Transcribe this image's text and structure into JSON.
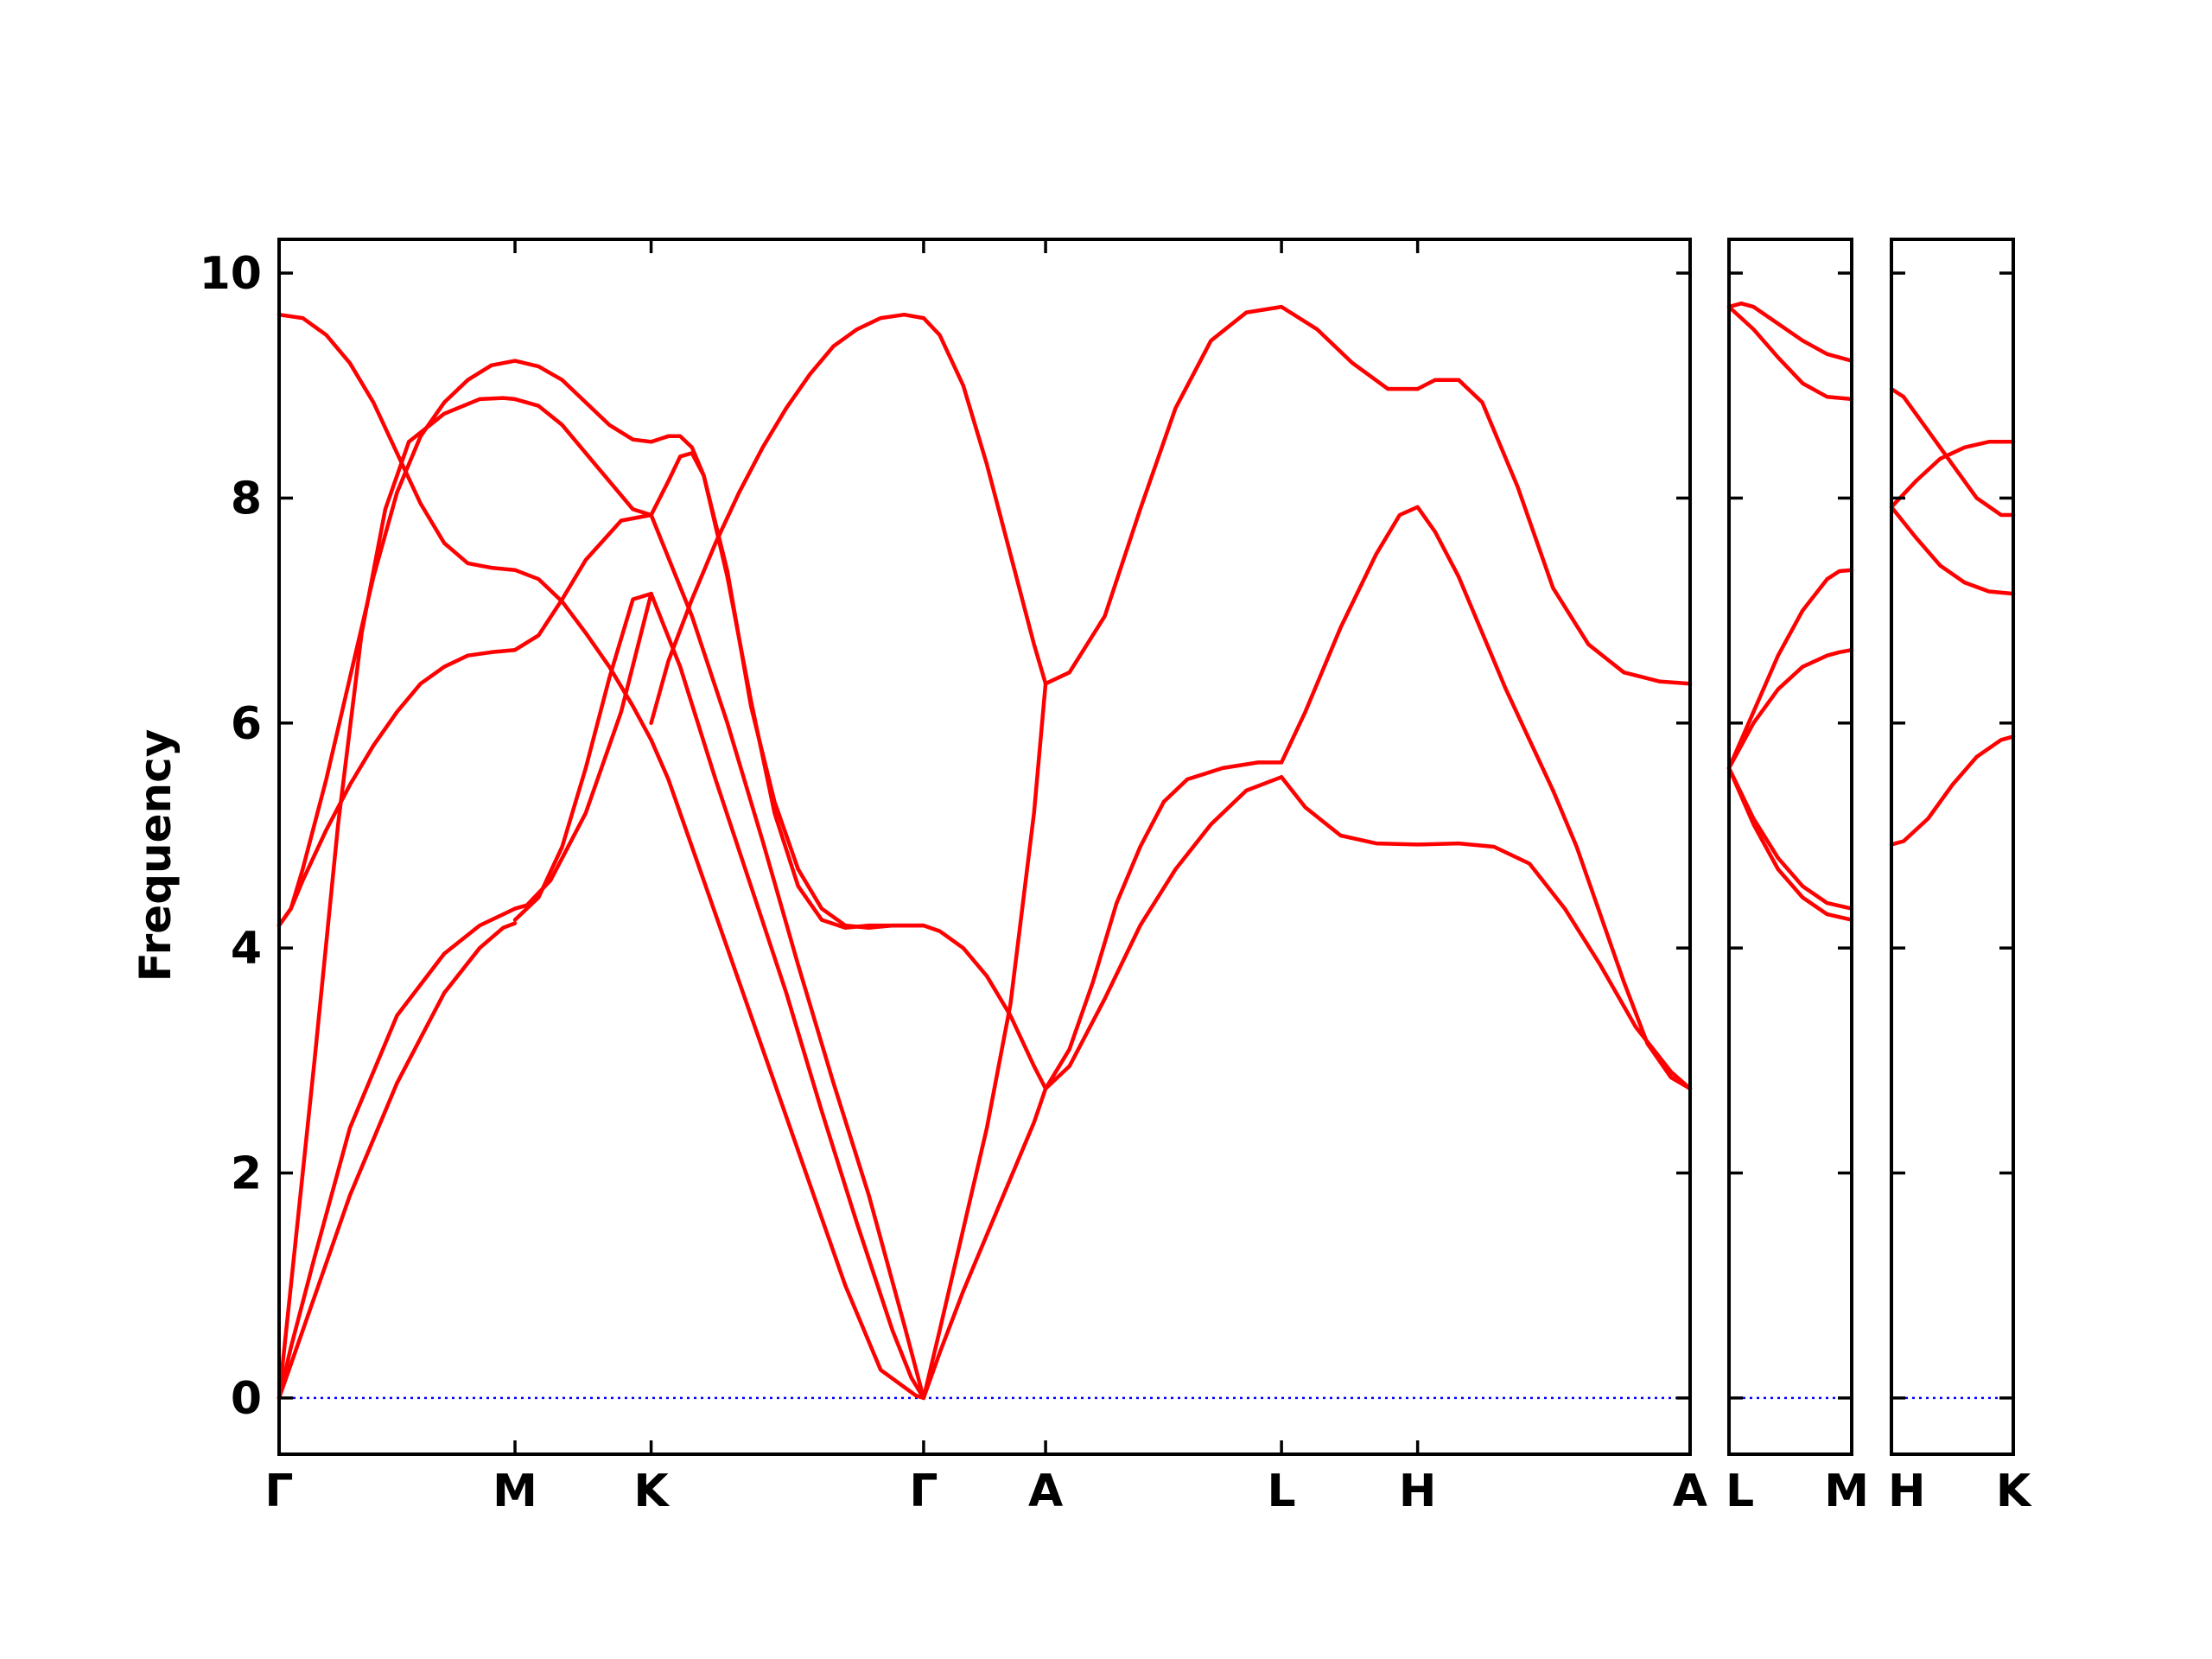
{
  "chart_data": {
    "type": "line",
    "ylabel": "Frequency",
    "xlabel": "",
    "ylim": [
      -0.5,
      10.3
    ],
    "yticks": [
      0,
      2,
      4,
      6,
      8,
      10
    ],
    "grid": false,
    "colors": {
      "bands": "#ff0000",
      "zero_line": "#0000ff",
      "frame": "#000000"
    },
    "panels": [
      {
        "name": "panel-main",
        "kpoints": [
          {
            "label": "Γ",
            "x": 0.0
          },
          {
            "label": "M",
            "x": 1.0
          },
          {
            "label": "K",
            "x": 1.577
          },
          {
            "label": "Γ",
            "x": 2.732
          },
          {
            "label": "A",
            "x": 3.249
          },
          {
            "label": "L",
            "x": 4.249
          },
          {
            "label": "H",
            "x": 4.826
          },
          {
            "label": "A",
            "x": 5.981
          }
        ],
        "series": [
          {
            "x": [
              0,
              0.05,
              0.15,
              0.3,
              0.5,
              0.7,
              0.85,
              0.95,
              1.0
            ],
            "y": [
              0,
              0.3,
              0.9,
              1.8,
              2.8,
              3.6,
              4.0,
              4.18,
              4.22
            ]
          },
          {
            "x": [
              0,
              0.05,
              0.15,
              0.3,
              0.5,
              0.7,
              0.85,
              0.95,
              1.0
            ],
            "y": [
              0,
              0.45,
              1.25,
              2.4,
              3.4,
              3.95,
              4.2,
              4.3,
              4.35
            ]
          },
          {
            "x": [
              0,
              0.05,
              0.15,
              0.25,
              0.35,
              0.45,
              0.55
            ],
            "y": [
              0,
              1.0,
              3.0,
              5.1,
              6.8,
              7.9,
              8.5
            ]
          },
          {
            "x": [
              0,
              0.05,
              0.1,
              0.2,
              0.3,
              0.4,
              0.5,
              0.6,
              0.7,
              0.8,
              0.9,
              1.0
            ],
            "y": [
              4.2,
              4.35,
              4.7,
              5.5,
              6.4,
              7.3,
              8.05,
              8.55,
              8.85,
              9.05,
              9.18,
              9.22
            ]
          },
          {
            "x": [
              0,
              0.05,
              0.1,
              0.2,
              0.3,
              0.4,
              0.5,
              0.6,
              0.7,
              0.8,
              0.9,
              1.0
            ],
            "y": [
              4.2,
              4.35,
              4.6,
              5.05,
              5.45,
              5.8,
              6.1,
              6.35,
              6.5,
              6.6,
              6.63,
              6.65
            ]
          },
          {
            "x": [
              0,
              0.1,
              0.2,
              0.3,
              0.4,
              0.5,
              0.6,
              0.7,
              0.8,
              0.9,
              1.0
            ],
            "y": [
              9.63,
              9.6,
              9.45,
              9.2,
              8.85,
              8.4,
              7.95,
              7.6,
              7.42,
              7.38,
              7.36
            ]
          },
          {
            "x": [
              0.55,
              0.7,
              0.85,
              0.95,
              1.0
            ],
            "y": [
              8.5,
              8.75,
              8.88,
              8.89,
              8.88
            ]
          },
          {
            "x": [
              1.0,
              1.1,
              1.2,
              1.3,
              1.4,
              1.5,
              1.577
            ],
            "y": [
              4.25,
              4.45,
              4.9,
              5.6,
              6.4,
              7.1,
              7.15
            ]
          },
          {
            "x": [
              1.0,
              1.05,
              1.15,
              1.3,
              1.45,
              1.577
            ],
            "y": [
              4.35,
              4.38,
              4.6,
              5.2,
              6.1,
              7.15
            ]
          },
          {
            "x": [
              1.0,
              1.1,
              1.2,
              1.3,
              1.4,
              1.5,
              1.577
            ],
            "y": [
              9.22,
              9.17,
              9.05,
              8.85,
              8.65,
              8.52,
              8.5
            ]
          },
          {
            "x": [
              1.0,
              1.1,
              1.2,
              1.3,
              1.4,
              1.5,
              1.577
            ],
            "y": [
              8.88,
              8.82,
              8.65,
              8.4,
              8.15,
              7.9,
              7.85
            ]
          },
          {
            "x": [
              1.0,
              1.1,
              1.2,
              1.3,
              1.45,
              1.577
            ],
            "y": [
              6.65,
              6.78,
              7.1,
              7.45,
              7.8,
              7.85
            ]
          },
          {
            "x": [
              1.0,
              1.1,
              1.2,
              1.3,
              1.4,
              1.5,
              1.577
            ],
            "y": [
              7.36,
              7.28,
              7.08,
              6.8,
              6.5,
              6.15,
              5.85
            ]
          },
          {
            "x": [
              1.577,
              1.7,
              1.85,
              2.0,
              2.15,
              2.3,
              2.45,
              2.6,
              2.68,
              2.732
            ],
            "y": [
              7.15,
              6.5,
              5.5,
              4.55,
              3.6,
              2.55,
              1.55,
              0.6,
              0.18,
              0
            ]
          },
          {
            "x": [
              1.577,
              1.75,
              1.9,
              2.05,
              2.2,
              2.35,
              2.5,
              2.65,
              2.732
            ],
            "y": [
              7.85,
              6.95,
              6.0,
              4.95,
              3.85,
              2.8,
              1.8,
              0.65,
              0
            ]
          },
          {
            "x": [
              1.577,
              1.65,
              1.8,
              1.95,
              2.1,
              2.25,
              2.4,
              2.55,
              2.7,
              2.732
            ],
            "y": [
              5.85,
              5.5,
              4.6,
              3.7,
              2.8,
              1.9,
              1.0,
              0.25,
              0.02,
              0
            ]
          },
          {
            "x": [
              1.577,
              1.65,
              1.7,
              1.75,
              1.8,
              1.9,
              2.0,
              2.1,
              2.2,
              2.3,
              2.4,
              2.5,
              2.6,
              2.68,
              2.732
            ],
            "y": [
              8.5,
              8.55,
              8.55,
              8.45,
              8.2,
              7.3,
              6.2,
              5.2,
              4.55,
              4.25,
              4.18,
              4.2,
              4.2,
              4.2,
              4.2
            ]
          },
          {
            "x": [
              1.577,
              1.65,
              1.7,
              1.75,
              1.8,
              1.9,
              2.0,
              2.1,
              2.2,
              2.3,
              2.4,
              2.5,
              2.6,
              2.68,
              2.732
            ],
            "y": [
              7.85,
              8.15,
              8.37,
              8.4,
              8.2,
              7.35,
              6.15,
              5.3,
              4.7,
              4.35,
              4.2,
              4.18,
              4.2,
              4.2,
              4.2
            ]
          },
          {
            "x": [
              1.577,
              1.65,
              1.75,
              1.85,
              1.95,
              2.05,
              2.15,
              2.25,
              2.35,
              2.45,
              2.55,
              2.65,
              2.732
            ],
            "y": [
              6.0,
              6.55,
              7.1,
              7.6,
              8.05,
              8.45,
              8.8,
              9.1,
              9.35,
              9.5,
              9.6,
              9.63,
              9.6
            ]
          },
          {
            "x": [
              2.732,
              2.8,
              2.9,
              3.0,
              3.1,
              3.2,
              3.249
            ],
            "y": [
              9.6,
              9.45,
              9.0,
              8.3,
              7.5,
              6.7,
              6.35
            ]
          },
          {
            "x": [
              2.732,
              2.8,
              2.9,
              3.0,
              3.1,
              3.2,
              3.249
            ],
            "y": [
              4.2,
              4.15,
              4.0,
              3.75,
              3.4,
              2.95,
              2.75
            ]
          },
          {
            "x": [
              2.732,
              2.8,
              2.9,
              3.0,
              3.1,
              3.2,
              3.249
            ],
            "y": [
              0,
              0.6,
              1.5,
              2.4,
              3.5,
              5.2,
              6.35
            ]
          },
          {
            "x": [
              2.732,
              2.8,
              2.9,
              3.0,
              3.1,
              3.2,
              3.249
            ],
            "y": [
              0,
              0.4,
              0.95,
              1.45,
              1.95,
              2.45,
              2.75
            ]
          },
          {
            "x": [
              3.249,
              3.35,
              3.5,
              3.65,
              3.8,
              3.95,
              4.1,
              4.249,
              4.4,
              4.55,
              4.7,
              4.826
            ],
            "y": [
              6.35,
              6.45,
              6.95,
              7.9,
              8.8,
              9.4,
              9.65,
              9.7,
              9.5,
              9.2,
              8.97,
              8.97
            ]
          },
          {
            "x": [
              4.826,
              4.9,
              5.0,
              5.1,
              5.25,
              5.4,
              5.55,
              5.7,
              5.85,
              5.981
            ],
            "y": [
              8.97,
              9.05,
              9.05,
              8.85,
              8.1,
              7.2,
              6.7,
              6.45,
              6.37,
              6.35
            ]
          },
          {
            "x": [
              3.249,
              3.35,
              3.45,
              3.55,
              3.65,
              3.75,
              3.85,
              4.0,
              4.15,
              4.249
            ],
            "y": [
              2.75,
              3.1,
              3.7,
              4.4,
              4.9,
              5.3,
              5.5,
              5.6,
              5.65,
              5.65
            ]
          },
          {
            "x": [
              3.249,
              3.35,
              3.5,
              3.65,
              3.8,
              3.95,
              4.1,
              4.249
            ],
            "y": [
              2.75,
              2.95,
              3.55,
              4.2,
              4.7,
              5.1,
              5.4,
              5.52
            ]
          },
          {
            "x": [
              4.249,
              4.35,
              4.5,
              4.65,
              4.75,
              4.826,
              4.9,
              5.0,
              5.1,
              5.2,
              5.3,
              5.4
            ],
            "y": [
              5.65,
              6.1,
              6.85,
              7.5,
              7.85,
              7.92,
              7.7,
              7.3,
              6.8,
              6.3,
              5.85,
              5.4
            ]
          },
          {
            "x": [
              5.4,
              5.5,
              5.6,
              5.7,
              5.8,
              5.9,
              5.981
            ],
            "y": [
              5.4,
              4.9,
              4.3,
              3.7,
              3.15,
              2.85,
              2.75
            ]
          },
          {
            "x": [
              4.249,
              4.35,
              4.5,
              4.65,
              4.826,
              5.0,
              5.15,
              5.3,
              5.45,
              5.6,
              5.75,
              5.9,
              5.981
            ],
            "y": [
              5.52,
              5.25,
              5.0,
              4.93,
              4.92,
              4.93,
              4.9,
              4.75,
              4.35,
              3.85,
              3.3,
              2.9,
              2.75
            ]
          }
        ]
      },
      {
        "name": "panel-lm",
        "kpoints": [
          {
            "label": "L",
            "x": 0.0
          },
          {
            "label": "M",
            "x": 0.5
          }
        ],
        "series": [
          {
            "x": [
              0,
              0.05,
              0.1,
              0.2,
              0.3,
              0.4,
              0.5
            ],
            "y": [
              9.7,
              9.73,
              9.7,
              9.55,
              9.4,
              9.28,
              9.22
            ]
          },
          {
            "x": [
              0,
              0.1,
              0.2,
              0.3,
              0.4,
              0.5
            ],
            "y": [
              9.7,
              9.5,
              9.25,
              9.02,
              8.9,
              8.88
            ]
          },
          {
            "x": [
              0,
              0.1,
              0.2,
              0.3,
              0.4,
              0.45,
              0.5
            ],
            "y": [
              5.6,
              6.1,
              6.6,
              7.0,
              7.28,
              7.35,
              7.36
            ]
          },
          {
            "x": [
              0,
              0.1,
              0.2,
              0.3,
              0.4,
              0.45,
              0.5
            ],
            "y": [
              5.6,
              6.0,
              6.3,
              6.5,
              6.6,
              6.63,
              6.65
            ]
          },
          {
            "x": [
              0,
              0.1,
              0.2,
              0.3,
              0.4,
              0.5
            ],
            "y": [
              5.6,
              5.1,
              4.7,
              4.45,
              4.3,
              4.25
            ]
          },
          {
            "x": [
              0,
              0.1,
              0.2,
              0.3,
              0.4,
              0.5
            ],
            "y": [
              5.6,
              5.15,
              4.8,
              4.55,
              4.4,
              4.35
            ]
          }
        ]
      },
      {
        "name": "panel-hk",
        "kpoints": [
          {
            "label": "H",
            "x": 0.0
          },
          {
            "label": "K",
            "x": 0.5
          }
        ],
        "series": [
          {
            "x": [
              0,
              0.05,
              0.15,
              0.25,
              0.35,
              0.45,
              0.5
            ],
            "y": [
              8.97,
              8.9,
              8.6,
              8.3,
              8.0,
              7.85,
              7.85
            ]
          },
          {
            "x": [
              0,
              0.1,
              0.2,
              0.3,
              0.4,
              0.5
            ],
            "y": [
              7.92,
              8.15,
              8.35,
              8.45,
              8.5,
              8.5
            ]
          },
          {
            "x": [
              0,
              0.1,
              0.2,
              0.3,
              0.4,
              0.5
            ],
            "y": [
              7.92,
              7.65,
              7.4,
              7.25,
              7.17,
              7.15
            ]
          },
          {
            "x": [
              0,
              0.05,
              0.15,
              0.25,
              0.35,
              0.45,
              0.5
            ],
            "y": [
              4.92,
              4.95,
              5.15,
              5.45,
              5.7,
              5.85,
              5.88
            ]
          }
        ]
      }
    ]
  }
}
